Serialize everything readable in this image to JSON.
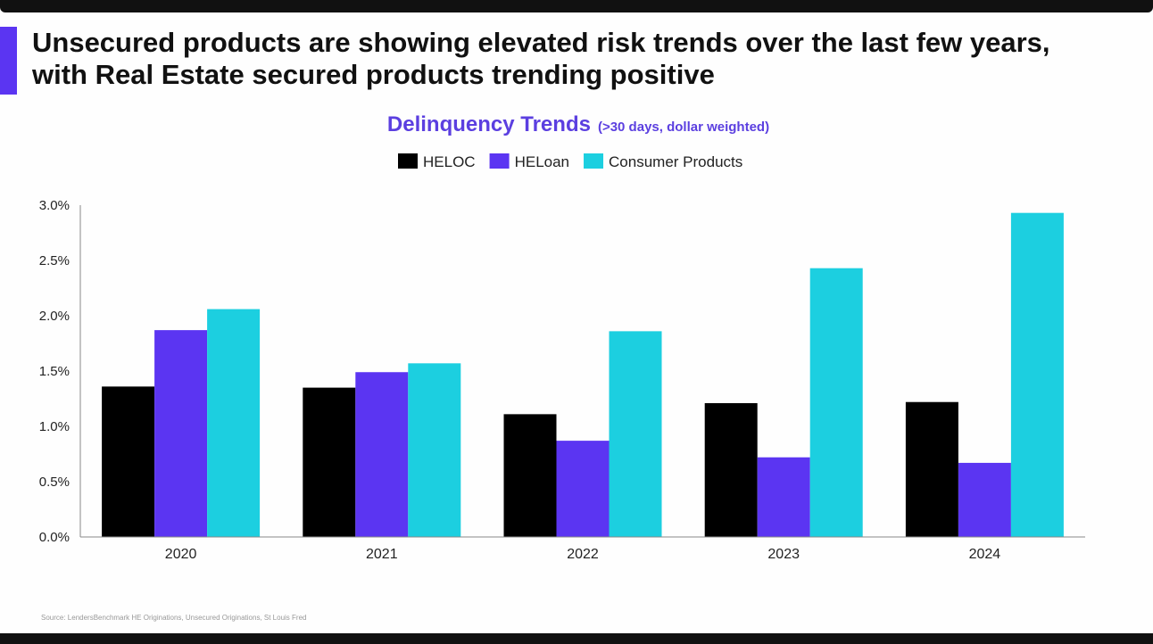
{
  "headline": {
    "line1": "Unsecured products are showing elevated risk trends over the last few years,",
    "line2": "with Real Estate secured products trending positive"
  },
  "source_note": "Source: LendersBenchmark HE Originations, Unsecured Originations, St Louis Fred",
  "colors": {
    "accent": "#5b35f2",
    "title": "#5b3fe0"
  },
  "chart_data": {
    "type": "bar",
    "title": "Delinquency Trends",
    "subtitle": "(>30 days, dollar weighted)",
    "xlabel": "",
    "ylabel": "",
    "categories": [
      "2020",
      "2021",
      "2022",
      "2023",
      "2024"
    ],
    "series": [
      {
        "name": "HELOC",
        "color": "#000000",
        "values": [
          1.36,
          1.35,
          1.11,
          1.21,
          1.22
        ]
      },
      {
        "name": "HELoan",
        "color": "#5b35f2",
        "values": [
          1.87,
          1.49,
          0.87,
          0.72,
          0.67
        ]
      },
      {
        "name": "Consumer Products",
        "color": "#1ccfe0",
        "values": [
          2.06,
          1.57,
          1.86,
          2.43,
          2.93
        ]
      }
    ],
    "ylim": [
      0,
      3.0
    ],
    "yticks": [
      0,
      0.5,
      1.0,
      1.5,
      2.0,
      2.5,
      3.0
    ],
    "ytick_labels": [
      "0.0%",
      "0.5%",
      "1.0%",
      "1.5%",
      "2.0%",
      "2.5%",
      "3.0%"
    ],
    "legend_position": "top-center",
    "grid": false
  }
}
